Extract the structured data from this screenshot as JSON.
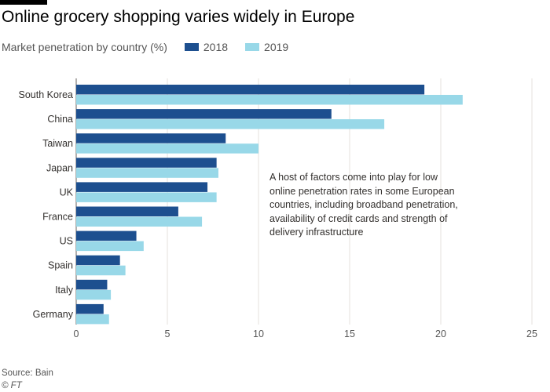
{
  "header": {
    "title": "Online grocery shopping varies widely in Europe",
    "subtitle": "Market penetration by country (%)"
  },
  "annotation": "A host of factors come into play for low online penetration rates in some European countries, including broadband penetration, availability of credit cards and strength of delivery infrastructure",
  "footer": {
    "source": "Source: Bain",
    "copyright": "© FT"
  },
  "colors": {
    "series_2018": "#1d4f8f",
    "series_2019": "#98d8e8",
    "grid": "#e6e2dd",
    "axis": "#66605c"
  },
  "chart_data": {
    "type": "bar",
    "orientation": "horizontal",
    "title": "Online grocery shopping varies widely in Europe",
    "subtitle": "Market penetration by country (%)",
    "xlabel": "",
    "ylabel": "",
    "xlim": [
      0,
      25
    ],
    "xticks": [
      0,
      5,
      10,
      15,
      20,
      25
    ],
    "grid": true,
    "legend": "top-left",
    "categories": [
      "South Korea",
      "China",
      "Taiwan",
      "Japan",
      "UK",
      "France",
      "US",
      "Spain",
      "Italy",
      "Germany"
    ],
    "series": [
      {
        "name": "2018",
        "values": [
          19.1,
          14.0,
          8.2,
          7.7,
          7.2,
          5.6,
          3.3,
          2.4,
          1.7,
          1.5
        ]
      },
      {
        "name": "2019",
        "values": [
          21.2,
          16.9,
          10.0,
          7.8,
          7.7,
          6.9,
          3.7,
          2.7,
          1.9,
          1.8
        ]
      }
    ]
  }
}
